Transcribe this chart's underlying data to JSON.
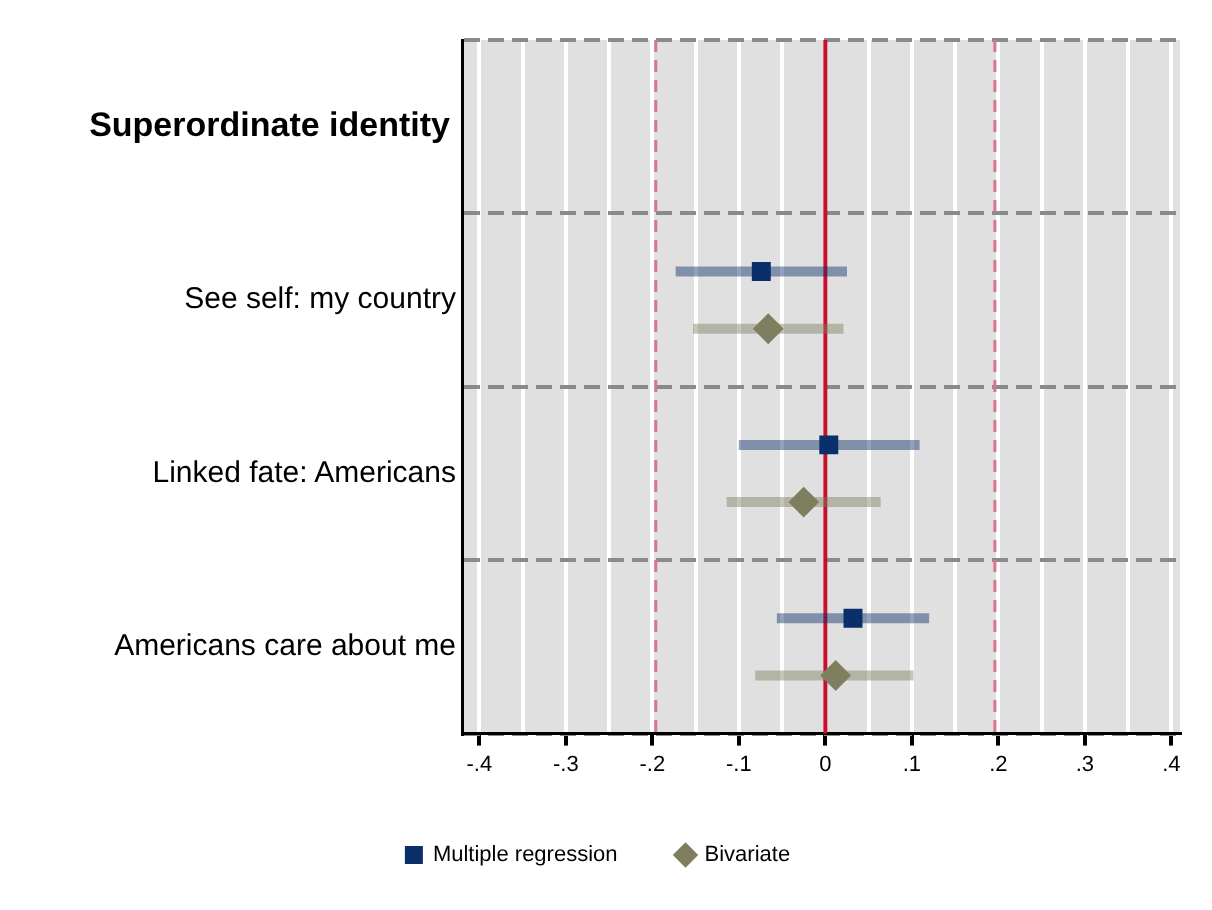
{
  "chart_data": {
    "type": "scatter",
    "orientation": "horizontal",
    "title": "Superordinate identity",
    "categories": [
      "See self: my country",
      "Linked fate: Americans",
      "Americans care about me"
    ],
    "series": [
      {
        "name": "Multiple regression",
        "color": "#0b2f6b",
        "marker": "square",
        "values": [
          -0.074,
          0.004,
          0.032
        ],
        "errors": [
          [
            -0.173,
            0.025
          ],
          [
            -0.1,
            0.109
          ],
          [
            -0.056,
            0.12
          ]
        ]
      },
      {
        "name": "Bivariate",
        "color": "#7f7f5f",
        "marker": "diamond",
        "values": [
          -0.066,
          -0.025,
          0.012
        ],
        "errors": [
          [
            -0.153,
            0.021
          ],
          [
            -0.114,
            0.064
          ],
          [
            -0.081,
            0.102
          ]
        ]
      }
    ],
    "xlim": [
      -0.42,
      0.41
    ],
    "xticks": [
      {
        "value": -0.4,
        "label": "-.4"
      },
      {
        "value": -0.35,
        "label": null
      },
      {
        "value": -0.3,
        "label": "-.3"
      },
      {
        "value": -0.25,
        "label": null
      },
      {
        "value": -0.2,
        "label": "-.2"
      },
      {
        "value": -0.15,
        "label": null
      },
      {
        "value": -0.1,
        "label": "-.1"
      },
      {
        "value": -0.05,
        "label": null
      },
      0,
      {
        "value": 0.05,
        "label": null
      },
      {
        "value": 0.1,
        "label": ".1"
      },
      {
        "value": 0.15,
        "label": null
      },
      {
        "value": 0.2,
        "label": ".2"
      },
      {
        "value": 0.25,
        "label": null
      },
      {
        "value": 0.3,
        "label": ".3"
      },
      {
        "value": 0.35,
        "label": null
      },
      {
        "value": 0.4,
        "label": ".4"
      }
    ],
    "ref_lines": [
      {
        "axis": "x",
        "value": 0,
        "color": "#c8102e",
        "line_style": "solid"
      },
      {
        "axis": "x",
        "value": -0.196,
        "color": "#d9758a",
        "line_style": "dashed"
      },
      {
        "axis": "x",
        "value": 0.196,
        "color": "#d9758a",
        "line_style": "dashed"
      }
    ],
    "grid": true,
    "legend": "bottom"
  }
}
